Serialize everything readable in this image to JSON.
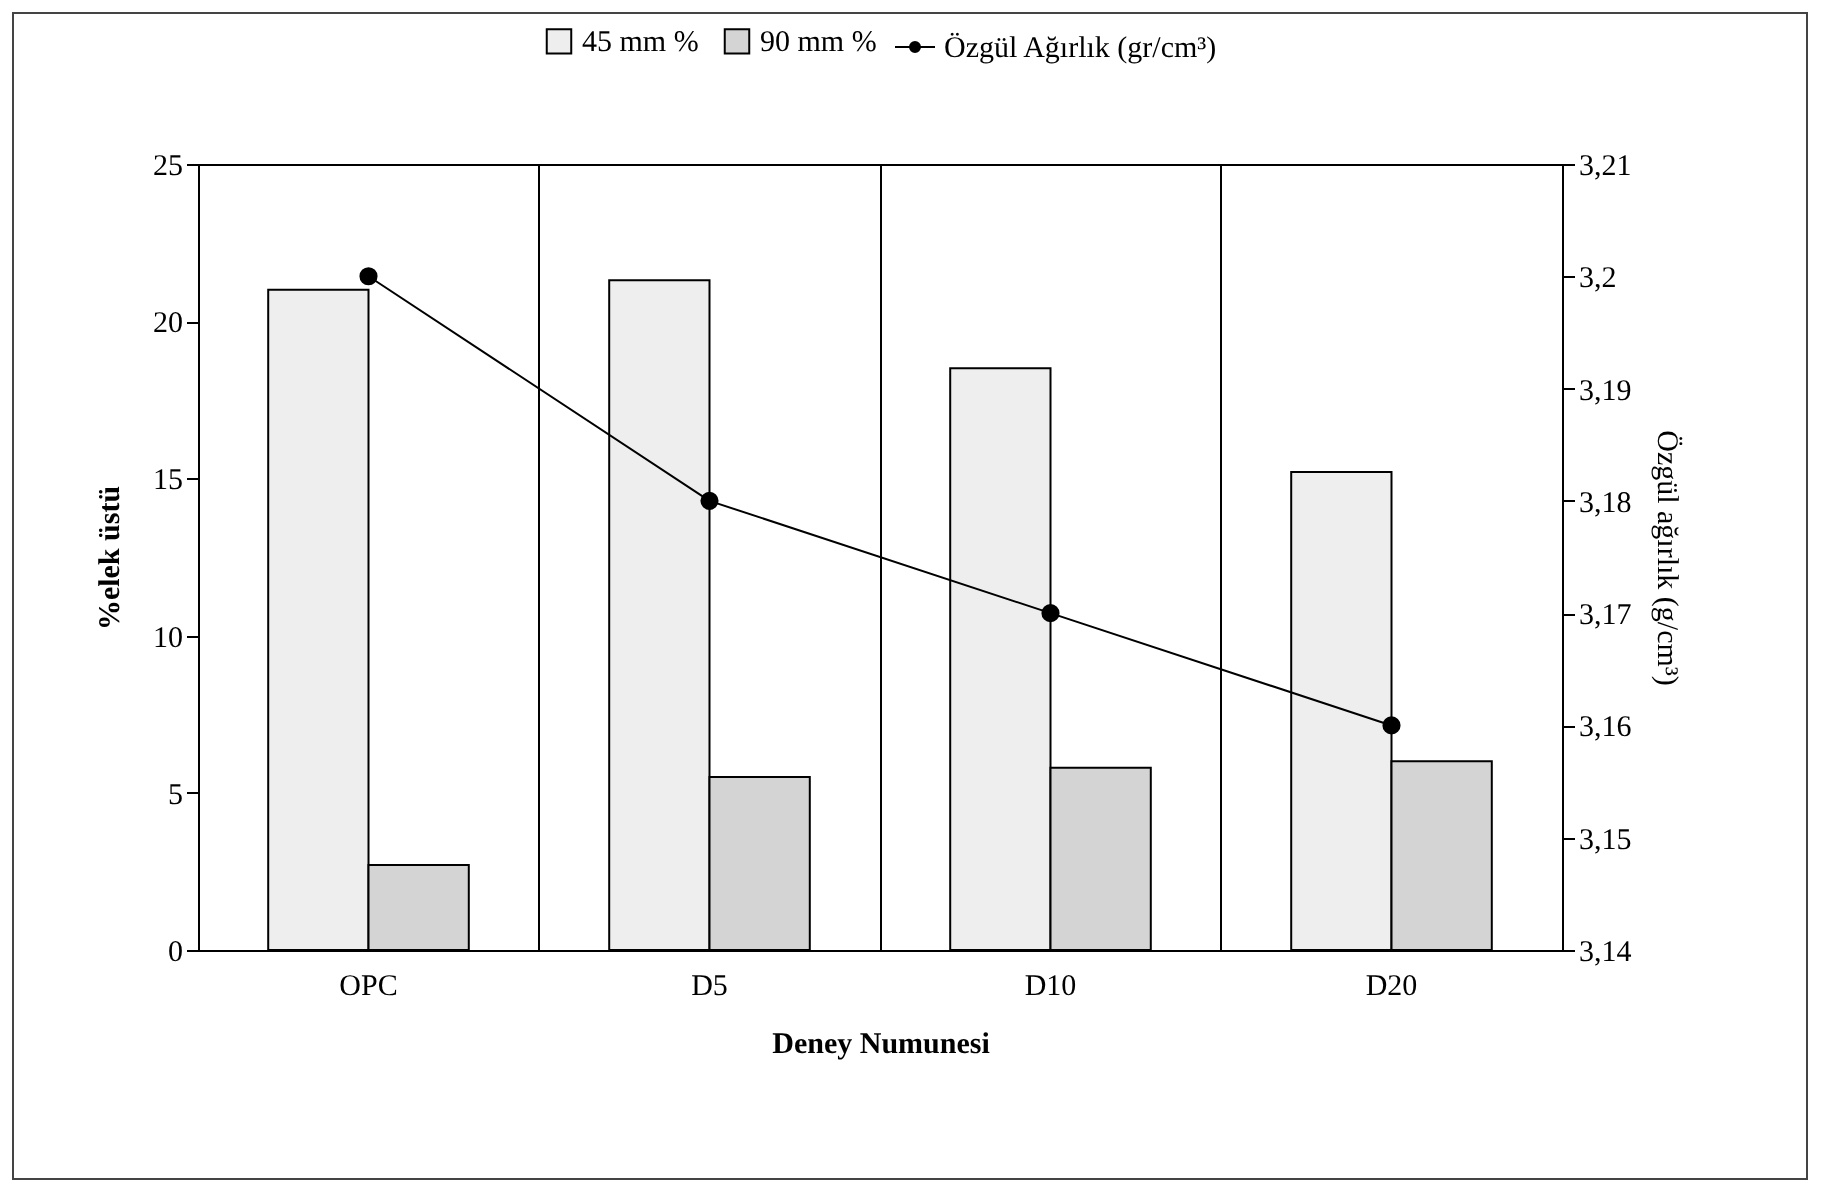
{
  "chart_data": {
    "type": "bar",
    "categories": [
      "OPC",
      "D5",
      "D10",
      "D20"
    ],
    "xlabel": "Deney Numunesi",
    "ylabel": "%elek üstü",
    "y2label": "Özgül ağırlık (g/cm³)",
    "series": [
      {
        "name": "45 mm %",
        "color": "#eeeeee",
        "values": [
          21.0,
          21.3,
          18.5,
          15.2
        ]
      },
      {
        "name": "90 mm %",
        "color": "#d4d4d4",
        "values": [
          2.7,
          5.5,
          5.8,
          6.0
        ]
      },
      {
        "name": "Özgül Ağırlık (gr/cm³)",
        "type": "line",
        "axis": "y2",
        "color": "#000000",
        "marker": "circle",
        "values": [
          3.2,
          3.18,
          3.17,
          3.16
        ]
      }
    ],
    "ylim": [
      0,
      25
    ],
    "yticks": [
      0,
      5,
      10,
      15,
      20,
      25
    ],
    "y2lim": [
      3.14,
      3.21
    ],
    "y2ticks": [
      {
        "value": 3.14,
        "label": "3,14"
      },
      {
        "value": 3.15,
        "label": "3,15"
      },
      {
        "value": 3.16,
        "label": "3,16"
      },
      {
        "value": 3.17,
        "label": "3,17"
      },
      {
        "value": 3.18,
        "label": "3,18"
      },
      {
        "value": 3.19,
        "label": "3,19"
      },
      {
        "value": 3.2,
        "label": "3,2"
      },
      {
        "value": 3.21,
        "label": "3,21"
      }
    ],
    "grid": "x",
    "legend": "top"
  }
}
